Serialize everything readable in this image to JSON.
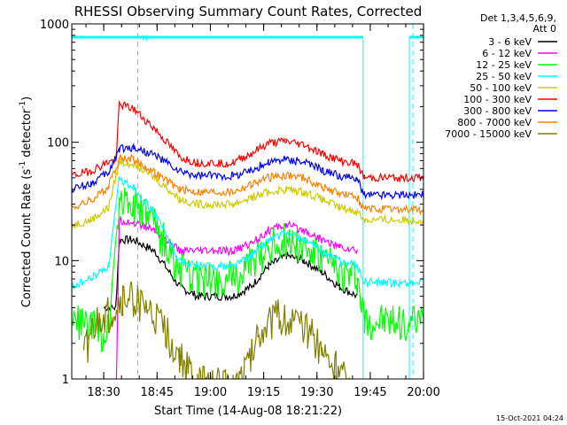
{
  "chart_data": {
    "type": "line",
    "title": "RHESSI Observing Summary Count Rates, Corrected",
    "xlabel": "Start Time (14-Aug-08 18:21:22)",
    "ylabel_main": "Corrected Count Rate (s",
    "ylabel_sup1": "-1",
    "ylabel_mid": " detector",
    "ylabel_sup2": "-1",
    "ylabel_end": ")",
    "yscale": "log",
    "ylim": [
      1,
      1000
    ],
    "xlim_minutes": [
      -0.37,
      98.6
    ],
    "x_unit": "minutes since 18:21:22",
    "y_ticks": [
      {
        "v": 1,
        "label": "1"
      },
      {
        "v": 10,
        "label": "10"
      },
      {
        "v": 100,
        "label": "100"
      },
      {
        "v": 1000,
        "label": "1000"
      }
    ],
    "x_ticks": [
      {
        "m": 8.63,
        "label": "18:30"
      },
      {
        "m": 23.63,
        "label": "18:45"
      },
      {
        "m": 38.63,
        "label": "19:00"
      },
      {
        "m": 53.63,
        "label": "19:15"
      },
      {
        "m": 68.63,
        "label": "19:30"
      },
      {
        "m": 83.63,
        "label": "19:45"
      },
      {
        "m": 98.63,
        "label": "20:00"
      }
    ],
    "legend_header": [
      "Det 1,3,4,5,6,9,",
      "Att 0"
    ],
    "legend_position": "top-right",
    "night_intervals": [
      [
        -0.37,
        81.6
      ],
      [
        94.6,
        98.6
      ]
    ],
    "saa_marker": {
      "m": 18.2,
      "label": "N"
    },
    "dashed_lines_minutes": [
      18.2,
      95.6
    ],
    "series": [
      {
        "name": "3 - 6 keV",
        "color": "#000000",
        "points": [
          [
            8.6,
            4
          ],
          [
            12,
            4
          ],
          [
            13,
            15
          ],
          [
            17,
            15
          ],
          [
            23,
            12
          ],
          [
            30,
            6
          ],
          [
            35,
            5
          ],
          [
            45,
            5
          ],
          [
            50,
            6
          ],
          [
            55,
            9
          ],
          [
            60,
            11
          ],
          [
            65,
            10
          ],
          [
            70,
            8
          ],
          [
            75,
            6
          ],
          [
            80,
            5
          ]
        ]
      },
      {
        "name": "6 - 12 keV",
        "color": "#ff00ff",
        "points": [
          [
            0,
            0
          ],
          [
            12,
            0
          ],
          [
            13,
            22
          ],
          [
            17,
            21
          ],
          [
            23,
            18
          ],
          [
            30,
            12
          ],
          [
            35,
            12
          ],
          [
            45,
            12
          ],
          [
            50,
            14
          ],
          [
            55,
            18
          ],
          [
            60,
            20
          ],
          [
            65,
            18
          ],
          [
            70,
            15
          ],
          [
            75,
            13
          ],
          [
            80,
            12
          ]
        ]
      },
      {
        "name": "12 - 25 keV",
        "color": "#00ff00",
        "points": [
          [
            -0.37,
            3
          ],
          [
            2,
            3
          ],
          [
            8.63,
            2.4
          ],
          [
            10,
            2.8
          ],
          [
            13,
            33
          ],
          [
            17,
            30
          ],
          [
            23,
            20
          ],
          [
            30,
            8
          ],
          [
            35,
            7
          ],
          [
            45,
            7
          ],
          [
            50,
            9
          ],
          [
            55,
            13
          ],
          [
            60,
            15
          ],
          [
            65,
            13
          ],
          [
            70,
            10
          ],
          [
            75,
            8
          ],
          [
            80,
            7
          ],
          [
            82,
            3
          ],
          [
            90,
            3
          ],
          [
            98.6,
            3
          ]
        ]
      },
      {
        "name": "25 - 50 keV",
        "color": "#00ffff",
        "points": [
          [
            -0.37,
            6
          ],
          [
            5,
            7
          ],
          [
            10,
            9
          ],
          [
            13,
            48
          ],
          [
            17,
            42
          ],
          [
            23,
            25
          ],
          [
            30,
            10
          ],
          [
            35,
            9
          ],
          [
            45,
            9
          ],
          [
            50,
            11
          ],
          [
            55,
            15
          ],
          [
            60,
            17
          ],
          [
            65,
            15
          ],
          [
            70,
            12
          ],
          [
            75,
            10
          ],
          [
            80,
            9
          ],
          [
            82,
            6.5
          ],
          [
            98.6,
            6.5
          ]
        ]
      },
      {
        "name": "50 - 100 keV",
        "color": "#cccc00",
        "points": [
          [
            -0.37,
            20
          ],
          [
            5,
            22
          ],
          [
            10,
            28
          ],
          [
            13,
            68
          ],
          [
            17,
            66
          ],
          [
            23,
            50
          ],
          [
            30,
            33
          ],
          [
            35,
            30
          ],
          [
            45,
            30
          ],
          [
            50,
            34
          ],
          [
            55,
            38
          ],
          [
            60,
            40
          ],
          [
            65,
            38
          ],
          [
            70,
            33
          ],
          [
            75,
            28
          ],
          [
            80,
            26
          ],
          [
            82,
            22
          ],
          [
            98.6,
            22
          ]
        ]
      },
      {
        "name": "100 - 300 keV",
        "color": "#ff0000",
        "points": [
          [
            -0.37,
            52
          ],
          [
            5,
            57
          ],
          [
            10,
            68
          ],
          [
            12,
            70
          ],
          [
            13,
            210
          ],
          [
            17,
            190
          ],
          [
            23,
            130
          ],
          [
            30,
            75
          ],
          [
            35,
            67
          ],
          [
            45,
            67
          ],
          [
            50,
            80
          ],
          [
            55,
            98
          ],
          [
            60,
            102
          ],
          [
            65,
            95
          ],
          [
            70,
            80
          ],
          [
            75,
            70
          ],
          [
            80,
            65
          ],
          [
            82,
            50
          ],
          [
            98.6,
            50
          ]
        ]
      },
      {
        "name": "300 - 800 keV",
        "color": "#0000ff",
        "points": [
          [
            -0.37,
            40
          ],
          [
            5,
            45
          ],
          [
            10,
            55
          ],
          [
            13,
            88
          ],
          [
            17,
            90
          ],
          [
            23,
            78
          ],
          [
            30,
            56
          ],
          [
            35,
            52
          ],
          [
            45,
            52
          ],
          [
            50,
            58
          ],
          [
            55,
            68
          ],
          [
            60,
            72
          ],
          [
            65,
            68
          ],
          [
            70,
            58
          ],
          [
            75,
            52
          ],
          [
            80,
            48
          ],
          [
            82,
            36
          ],
          [
            98.6,
            36
          ]
        ]
      },
      {
        "name": "800 - 7000 keV",
        "color": "#ff8000",
        "points": [
          [
            -0.37,
            28
          ],
          [
            5,
            32
          ],
          [
            10,
            42
          ],
          [
            13,
            74
          ],
          [
            17,
            72
          ],
          [
            23,
            55
          ],
          [
            30,
            40
          ],
          [
            35,
            38
          ],
          [
            45,
            38
          ],
          [
            50,
            44
          ],
          [
            55,
            50
          ],
          [
            60,
            53
          ],
          [
            65,
            50
          ],
          [
            70,
            42
          ],
          [
            75,
            37
          ],
          [
            80,
            34
          ],
          [
            82,
            27
          ],
          [
            98.6,
            27
          ]
        ]
      },
      {
        "name": "7000 - 15000 keV",
        "color": "#808000",
        "points": [
          [
            3,
            1.5
          ],
          [
            5,
            2.4
          ],
          [
            8,
            3.2
          ],
          [
            11,
            3.6
          ],
          [
            14,
            4.6
          ],
          [
            17,
            4.8
          ],
          [
            22,
            3.5
          ],
          [
            26,
            2.5
          ],
          [
            30,
            1.5
          ],
          [
            35,
            0.9
          ],
          [
            45,
            0.9
          ],
          [
            50,
            1.5
          ],
          [
            52,
            2.5
          ],
          [
            55,
            3
          ],
          [
            58,
            3.3
          ],
          [
            62,
            3
          ],
          [
            66,
            2.5
          ],
          [
            70,
            1.8
          ],
          [
            74,
            1.2
          ],
          [
            78,
            0.9
          ]
        ]
      }
    ],
    "footer_timestamp": "15-Oct-2021 04:24"
  }
}
